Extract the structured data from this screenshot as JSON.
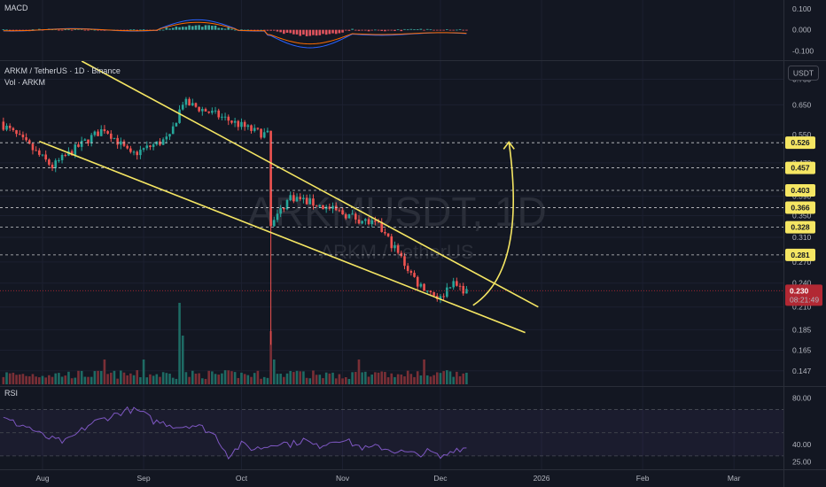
{
  "header": {
    "symbol_line": "ARKM / TetherUS · 1D · Binance",
    "volume_line": "Vol · ARKM",
    "macd_label": "MACD",
    "rsi_label": "RSI",
    "currency_button": "USDT"
  },
  "watermark": {
    "main": "ARKMUSDT, 1D",
    "sub": "ARKM / TetherUS"
  },
  "colors": {
    "background": "#131722",
    "up": "#26a69a",
    "down": "#ef5350",
    "drawing": "#f5e663",
    "label_bg": "#f5e663",
    "last_price_bg": "#b22833",
    "macd_line": "#2962ff",
    "signal_line": "#ff6d00",
    "rsi_line": "#7e57c2"
  },
  "chart_data": {
    "type": "candlestick",
    "x_ticks": [
      "Aug",
      "Sep",
      "Oct",
      "Nov",
      "Dec",
      "2026",
      "Feb",
      "Mar"
    ],
    "price_axis": {
      "scale": "log",
      "ylim": [
        0.135,
        0.83
      ],
      "ticks": [
        "0.750",
        "0.650",
        "0.550",
        "0.470",
        "0.390",
        "0.350",
        "0.310",
        "0.270",
        "0.240",
        "0.210",
        "0.185",
        "0.165",
        "0.147"
      ]
    },
    "macd_axis": {
      "ticks": [
        "0.100",
        "0.000",
        "-0.100"
      ]
    },
    "rsi_axis": {
      "ticks": [
        "80.00",
        "40.00",
        "25.00"
      ],
      "band": [
        30,
        70
      ]
    },
    "levels": [
      {
        "value": 0.526,
        "label": "0.526"
      },
      {
        "value": 0.457,
        "label": "0.457"
      },
      {
        "value": 0.403,
        "label": "0.403"
      },
      {
        "value": 0.366,
        "label": "0.366"
      },
      {
        "value": 0.328,
        "label": "0.328"
      },
      {
        "value": 0.281,
        "label": "0.281"
      }
    ],
    "last_price": {
      "value": 0.23,
      "label": "0.230",
      "countdown": "08:21:49"
    },
    "key_closes": [
      [
        "2025-07-20",
        0.58
      ],
      [
        "2025-07-31",
        0.49
      ],
      [
        "2025-08-04",
        0.46
      ],
      [
        "2025-08-20",
        0.57
      ],
      [
        "2025-08-28",
        0.49
      ],
      [
        "2025-09-09",
        0.54
      ],
      [
        "2025-09-13",
        0.66
      ],
      [
        "2025-09-22",
        0.62
      ],
      [
        "2025-10-05",
        0.56
      ],
      [
        "2025-10-09",
        0.55
      ],
      [
        "2025-10-10",
        0.33
      ],
      [
        "2025-10-16",
        0.39
      ],
      [
        "2025-10-25",
        0.37
      ],
      [
        "2025-11-03",
        0.35
      ],
      [
        "2025-11-12",
        0.33
      ],
      [
        "2025-11-21",
        0.26
      ],
      [
        "2025-11-24",
        0.24
      ],
      [
        "2025-12-01",
        0.22
      ],
      [
        "2025-12-04",
        0.24
      ],
      [
        "2025-12-09",
        0.23
      ]
    ],
    "trendlines": [
      {
        "name": "upper",
        "from": [
          "2025-08-13",
          0.83
        ],
        "to": [
          "2025-12-31",
          0.21
        ]
      },
      {
        "name": "lower",
        "from": [
          "2025-07-31",
          0.53
        ],
        "to": [
          "2025-12-27",
          0.182
        ]
      }
    ],
    "projection_arrow": {
      "from": [
        "2025-12-11",
        0.212
      ],
      "to": [
        "2025-12-22",
        0.528
      ]
    },
    "rsi_values": [
      62,
      58,
      55,
      48,
      44,
      42,
      50,
      58,
      62,
      66,
      70,
      68,
      60,
      58,
      55,
      57,
      54,
      47,
      30,
      40,
      36,
      38,
      42,
      40,
      44,
      38,
      42,
      45,
      40,
      36,
      38,
      35,
      33,
      31,
      34,
      28,
      36,
      37
    ]
  }
}
